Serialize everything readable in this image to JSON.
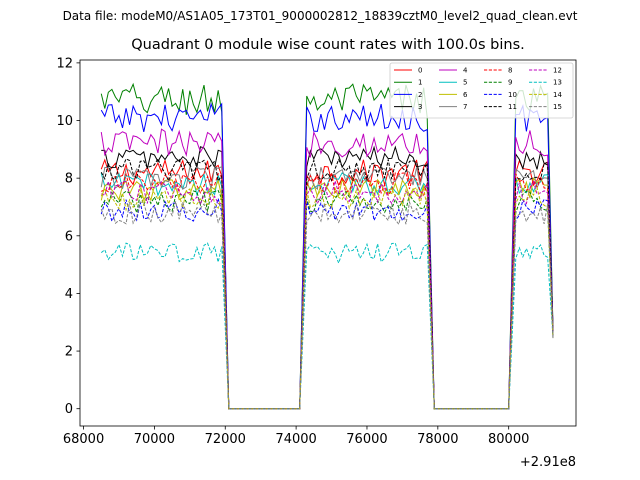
{
  "figure": {
    "suptitle": "Data file: modeM0/AS1A05_173T01_9000002812_18839cztM0_level2_quad_clean.evt",
    "title": "Quadrant 0 module wise count rates with 100.0s bins."
  },
  "chart_data": {
    "type": "line",
    "title": "Quadrant 0 module wise count rates with 100.0s bins.",
    "xlabel": "",
    "ylabel": "",
    "x_offset_label": "+2.91e8",
    "x_offset": 291000000,
    "xlim": [
      67900,
      81900
    ],
    "ylim": [
      -0.6,
      12.1
    ],
    "x_ticks": [
      68000,
      70000,
      72000,
      74000,
      76000,
      78000,
      80000
    ],
    "x_tick_labels": [
      "68000",
      "70000",
      "72000",
      "74000",
      "76000",
      "78000",
      "80000"
    ],
    "y_ticks": [
      0,
      2,
      4,
      6,
      8,
      10,
      12
    ],
    "y_tick_labels": [
      "0",
      "2",
      "4",
      "6",
      "8",
      "10",
      "12"
    ],
    "bin_seconds": 100,
    "segments": [
      {
        "start": 68500,
        "end": 71900
      },
      {
        "start": 74300,
        "end": 77700
      },
      {
        "start": 80200,
        "end": 81100
      }
    ],
    "gaps": [
      {
        "start": 72100,
        "end": 74100
      },
      {
        "start": 77900,
        "end": 80000
      }
    ],
    "gap_value": 0,
    "drop_end_value": 2.5,
    "legend_location": "upper right",
    "legend_columns": 4,
    "series": [
      {
        "name": "0",
        "color": "#ff0000",
        "linestyle": "solid",
        "mean": 8.2,
        "amplitude": 0.45
      },
      {
        "name": "1",
        "color": "#008000",
        "linestyle": "solid",
        "mean": 10.7,
        "amplitude": 0.6
      },
      {
        "name": "2",
        "color": "#0000ff",
        "linestyle": "solid",
        "mean": 10.1,
        "amplitude": 0.5
      },
      {
        "name": "3",
        "color": "#000000",
        "linestyle": "solid",
        "mean": 8.7,
        "amplitude": 0.4
      },
      {
        "name": "4",
        "color": "#bf00bf",
        "linestyle": "solid",
        "mean": 9.2,
        "amplitude": 0.5
      },
      {
        "name": "5",
        "color": "#00bfbf",
        "linestyle": "solid",
        "mean": 7.8,
        "amplitude": 0.4
      },
      {
        "name": "6",
        "color": "#bfbf00",
        "linestyle": "solid",
        "mean": 7.6,
        "amplitude": 0.4
      },
      {
        "name": "7",
        "color": "#808080",
        "linestyle": "solid",
        "mean": 8.0,
        "amplitude": 0.4
      },
      {
        "name": "8",
        "color": "#ff0000",
        "linestyle": "dashed",
        "mean": 7.8,
        "amplitude": 0.4
      },
      {
        "name": "9",
        "color": "#008000",
        "linestyle": "dashed",
        "mean": 7.2,
        "amplitude": 0.4
      },
      {
        "name": "10",
        "color": "#0000ff",
        "linestyle": "dashed",
        "mean": 6.9,
        "amplitude": 0.4
      },
      {
        "name": "11",
        "color": "#000000",
        "linestyle": "dashed",
        "mean": 8.3,
        "amplitude": 0.4
      },
      {
        "name": "12",
        "color": "#bf00bf",
        "linestyle": "dashed",
        "mean": 7.5,
        "amplitude": 0.4
      },
      {
        "name": "13",
        "color": "#00bfbf",
        "linestyle": "dashed",
        "mean": 5.4,
        "amplitude": 0.35
      },
      {
        "name": "14",
        "color": "#bfbf00",
        "linestyle": "dashed",
        "mean": 7.3,
        "amplitude": 0.4
      },
      {
        "name": "15",
        "color": "#808080",
        "linestyle": "dashed",
        "mean": 6.8,
        "amplitude": 0.4
      }
    ]
  }
}
